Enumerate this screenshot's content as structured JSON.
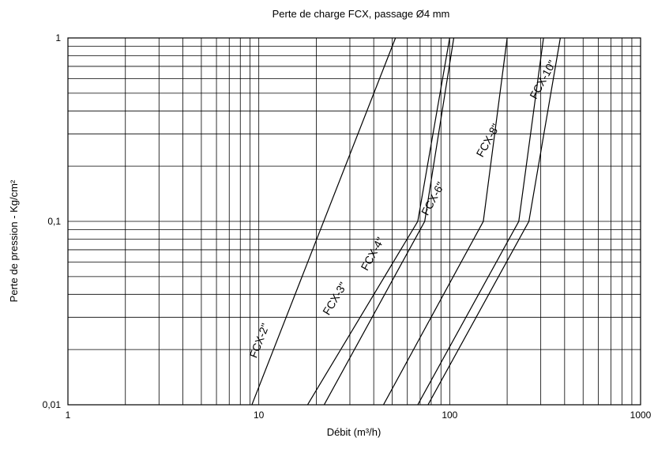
{
  "chart_data": {
    "type": "line",
    "title": "Perte de charge FCX, passage Ø4 mm",
    "xlabel": "Débit (m³/h)",
    "ylabel": "Perte de pression - Kg/cm²",
    "x_scale": "log",
    "y_scale": "log",
    "xlim": [
      1,
      1000
    ],
    "ylim": [
      0.01,
      1
    ],
    "x_ticks": [
      {
        "value": 1,
        "label": "1"
      },
      {
        "value": 10,
        "label": "10"
      },
      {
        "value": 100,
        "label": "100"
      },
      {
        "value": 1000,
        "label": "1000"
      }
    ],
    "y_ticks": [
      {
        "value": 0.01,
        "label": "0,01"
      },
      {
        "value": 0.1,
        "label": "0,1"
      },
      {
        "value": 1,
        "label": "1"
      }
    ],
    "grid": true,
    "legend": "none",
    "series": [
      {
        "name": "FCX-2\"",
        "points": [
          [
            9.2,
            0.01
          ],
          [
            52,
            1
          ]
        ],
        "label_at": [
          10.5,
          0.022
        ]
      },
      {
        "name": "FCX-3\"",
        "points": [
          [
            18,
            0.01
          ],
          [
            68,
            0.1
          ],
          [
            100,
            1
          ]
        ],
        "label_at": [
          26,
          0.037
        ]
      },
      {
        "name": "FCX-4\"",
        "points": [
          [
            22,
            0.01
          ],
          [
            74,
            0.1
          ],
          [
            105,
            1
          ]
        ],
        "label_at": [
          41,
          0.065
        ]
      },
      {
        "name": "FCX-6\"",
        "points": [
          [
            45,
            0.01
          ],
          [
            150,
            0.1
          ],
          [
            200,
            1
          ]
        ],
        "label_at": [
          85,
          0.13
        ]
      },
      {
        "name": "FCX-8\"",
        "points": [
          [
            68,
            0.01
          ],
          [
            230,
            0.1
          ],
          [
            310,
            1
          ]
        ],
        "label_at": [
          165,
          0.27
        ]
      },
      {
        "name": "FCX-10\"",
        "points": [
          [
            77,
            0.01
          ],
          [
            260,
            0.1
          ],
          [
            380,
            1
          ]
        ],
        "label_at": [
          320,
          0.58
        ]
      }
    ]
  }
}
